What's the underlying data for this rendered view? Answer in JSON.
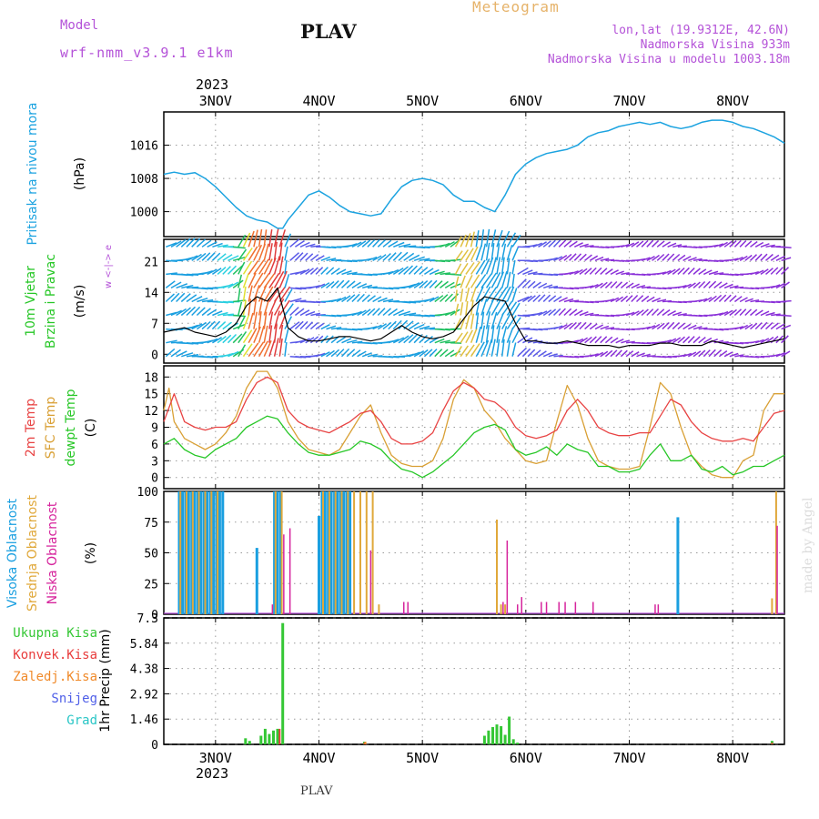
{
  "header": {
    "model_label": "Model",
    "model_value": "wrf-nmm_v3.9.1 e1km",
    "station": "PLAV",
    "title": "Meteogram",
    "lonlat": "lon,lat (19.9312E, 42.6N)",
    "elevation": "Nadmorska Visina 933m",
    "elevation_model": "Nadmorska Visina u modelu 1003.18m"
  },
  "footer": {
    "station": "PLAV",
    "watermark": "made by Angel",
    "year": "2023"
  },
  "colors": {
    "pressure": "#1ca3e0",
    "temp2m": "#e84343",
    "sfc": "#d9a035",
    "dewpt": "#27c727",
    "high_cloud": "#1a9fe0",
    "mid_cloud": "#e0a83a",
    "low_cloud": "#d6249c",
    "total_precip": "#35c735",
    "conv_precip": "#e83c3c",
    "frozen_precip": "#f08a2a",
    "snow": "#5060e8",
    "grad": "#2ac6c6",
    "purple": "#b452d8"
  },
  "chart_data": [
    {
      "type": "line",
      "panel": "pressure",
      "ylabel": "Pritisak na nivou mora",
      "unit": "(hPa)",
      "ylim": [
        994,
        1024
      ],
      "yticks": [
        1000,
        1008,
        1016
      ],
      "xticks": [
        "3NOV",
        "4NOV",
        "5NOV",
        "6NOV",
        "7NOV",
        "8NOV"
      ],
      "x_day_range": [
        2.5,
        8.5
      ],
      "grid": true,
      "series": [
        {
          "key": "pressure",
          "x": [
            2.5,
            2.6,
            2.7,
            2.8,
            2.9,
            3.0,
            3.1,
            3.2,
            3.3,
            3.4,
            3.5,
            3.6,
            3.65,
            3.7,
            3.8,
            3.9,
            4.0,
            4.1,
            4.2,
            4.3,
            4.4,
            4.5,
            4.6,
            4.7,
            4.8,
            4.9,
            5.0,
            5.1,
            5.2,
            5.3,
            5.4,
            5.5,
            5.6,
            5.7,
            5.8,
            5.9,
            6.0,
            6.1,
            6.2,
            6.3,
            6.4,
            6.5,
            6.6,
            6.7,
            6.8,
            6.9,
            7.0,
            7.1,
            7.2,
            7.3,
            7.4,
            7.5,
            7.6,
            7.7,
            7.8,
            7.9,
            8.0,
            8.1,
            8.2,
            8.3,
            8.4,
            8.5
          ],
          "values": [
            1009,
            1009.5,
            1009,
            1009.4,
            1008,
            1006,
            1003.5,
            1001,
            999,
            998,
            997.5,
            996,
            996,
            998,
            1001,
            1004,
            1005,
            1003.5,
            1001.5,
            1000,
            999.5,
            999,
            999.5,
            1003,
            1006,
            1007.5,
            1008,
            1007.5,
            1006.5,
            1004,
            1002.5,
            1002.5,
            1001,
            1000,
            1004,
            1009,
            1011.5,
            1013,
            1014,
            1014.5,
            1015,
            1016,
            1018,
            1019,
            1019.5,
            1020.5,
            1021,
            1021.5,
            1021,
            1021.5,
            1020.5,
            1020,
            1020.5,
            1021.5,
            1022,
            1022,
            1021.5,
            1020.5,
            1020,
            1019,
            1018,
            1016.5
          ]
        }
      ]
    },
    {
      "type": "line",
      "panel": "wind",
      "ylabel": [
        "10m Vjetar",
        "Brzina i Pravac"
      ],
      "unit": "(m/s)",
      "compass": "w <-|-> e",
      "ylim": [
        -2,
        26
      ],
      "yticks": [
        0,
        7,
        14,
        21
      ],
      "xticks": [
        "3NOV",
        "4NOV",
        "5NOV",
        "6NOV",
        "7NOV",
        "8NOV"
      ],
      "grid": true,
      "series": [
        {
          "key": "speed",
          "x": [
            2.5,
            2.6,
            2.7,
            2.8,
            2.9,
            3.0,
            3.1,
            3.2,
            3.3,
            3.4,
            3.5,
            3.6,
            3.7,
            3.8,
            3.9,
            4.0,
            4.1,
            4.2,
            4.3,
            4.4,
            4.5,
            4.6,
            4.7,
            4.8,
            4.9,
            5.0,
            5.1,
            5.2,
            5.3,
            5.4,
            5.5,
            5.6,
            5.7,
            5.8,
            5.9,
            6.0,
            6.1,
            6.2,
            6.3,
            6.4,
            6.5,
            6.6,
            6.7,
            6.8,
            6.9,
            7.0,
            7.1,
            7.2,
            7.3,
            7.4,
            7.5,
            7.6,
            7.7,
            7.8,
            7.9,
            8.0,
            8.1,
            8.2,
            8.3,
            8.4,
            8.5
          ],
          "values": [
            5,
            5.5,
            6,
            5,
            4.5,
            4,
            5,
            7,
            11,
            13,
            12,
            15,
            6,
            4,
            3,
            3,
            3.5,
            4,
            4,
            3.5,
            3,
            3.5,
            5,
            6.5,
            5,
            4,
            3.5,
            4,
            5,
            8,
            11,
            13,
            12.5,
            12,
            7,
            3,
            3,
            2.5,
            2.5,
            3,
            2.5,
            2,
            2,
            2,
            1.5,
            2,
            2,
            2,
            2.5,
            2.5,
            2,
            2,
            2,
            3,
            2.5,
            2,
            1.5,
            2,
            2.5,
            3,
            3.5
          ]
        }
      ]
    },
    {
      "type": "line",
      "panel": "temperature",
      "ylabel": [
        "2m Temp",
        "SFC Temp",
        "dewpt Temp"
      ],
      "unit": "(C)",
      "ylim": [
        -2,
        20
      ],
      "yticks": [
        0,
        3,
        6,
        9,
        12,
        15,
        18
      ],
      "xticks": [
        "3NOV",
        "4NOV",
        "5NOV",
        "6NOV",
        "7NOV",
        "8NOV"
      ],
      "grid": true,
      "series": [
        {
          "key": "temp2m",
          "x": [
            2.5,
            2.6,
            2.7,
            2.8,
            2.9,
            3.0,
            3.1,
            3.2,
            3.3,
            3.4,
            3.5,
            3.6,
            3.7,
            3.8,
            3.9,
            4.0,
            4.1,
            4.2,
            4.3,
            4.4,
            4.5,
            4.6,
            4.7,
            4.8,
            4.9,
            5.0,
            5.1,
            5.2,
            5.3,
            5.4,
            5.5,
            5.6,
            5.7,
            5.8,
            5.9,
            6.0,
            6.1,
            6.2,
            6.3,
            6.4,
            6.5,
            6.6,
            6.7,
            6.8,
            6.9,
            7.0,
            7.1,
            7.2,
            7.3,
            7.4,
            7.5,
            7.6,
            7.7,
            7.8,
            7.9,
            8.0,
            8.1,
            8.2,
            8.3,
            8.4,
            8.5
          ],
          "values": [
            10,
            15,
            10,
            9,
            8.5,
            9,
            9,
            10,
            14,
            17,
            18,
            17,
            12,
            10,
            9,
            8.5,
            8,
            9,
            10,
            11.5,
            12,
            10,
            7,
            6,
            6,
            6.5,
            8,
            12,
            15.5,
            17,
            16,
            14,
            13.5,
            12,
            9,
            7.5,
            7,
            7.5,
            8.5,
            12,
            14,
            12,
            9,
            8,
            7.5,
            7.5,
            8,
            8,
            11,
            14,
            13,
            10,
            8,
            7,
            6.5,
            6.5,
            7,
            6.5,
            9,
            11.5,
            12
          ]
        },
        {
          "key": "sfc",
          "x": [
            2.5,
            2.55,
            2.6,
            2.7,
            2.8,
            2.9,
            3.0,
            3.1,
            3.2,
            3.3,
            3.4,
            3.5,
            3.6,
            3.7,
            3.8,
            3.9,
            4.0,
            4.1,
            4.2,
            4.3,
            4.4,
            4.5,
            4.6,
            4.7,
            4.8,
            4.9,
            5.0,
            5.1,
            5.2,
            5.3,
            5.4,
            5.5,
            5.6,
            5.7,
            5.8,
            5.9,
            6.0,
            6.1,
            6.2,
            6.3,
            6.4,
            6.5,
            6.6,
            6.7,
            6.8,
            6.9,
            7.0,
            7.1,
            7.2,
            7.3,
            7.4,
            7.5,
            7.6,
            7.7,
            7.8,
            7.9,
            8.0,
            8.1,
            8.2,
            8.3,
            8.4,
            8.5
          ],
          "values": [
            12,
            16,
            10,
            7,
            6,
            5,
            6,
            8,
            11,
            16,
            19,
            19,
            16,
            10,
            7,
            5,
            4.5,
            4,
            5,
            8,
            11,
            13,
            8,
            4,
            2.5,
            2,
            2,
            3,
            7,
            14,
            17.5,
            16,
            12,
            10,
            7,
            5,
            3,
            2.5,
            3,
            10,
            16.5,
            13,
            7,
            3,
            2,
            1.5,
            1.5,
            2,
            9,
            17,
            15,
            9,
            4,
            2,
            0.5,
            0,
            0,
            3,
            4,
            12,
            15,
            15
          ]
        },
        {
          "key": "dewpt",
          "x": [
            2.5,
            2.6,
            2.7,
            2.8,
            2.9,
            3.0,
            3.1,
            3.2,
            3.3,
            3.4,
            3.5,
            3.6,
            3.7,
            3.8,
            3.9,
            4.0,
            4.1,
            4.2,
            4.3,
            4.4,
            4.5,
            4.6,
            4.7,
            4.8,
            4.9,
            5.0,
            5.1,
            5.2,
            5.3,
            5.4,
            5.5,
            5.6,
            5.7,
            5.8,
            5.9,
            6.0,
            6.1,
            6.2,
            6.3,
            6.4,
            6.5,
            6.6,
            6.7,
            6.8,
            6.9,
            7.0,
            7.1,
            7.2,
            7.3,
            7.4,
            7.5,
            7.6,
            7.7,
            7.8,
            7.9,
            8.0,
            8.1,
            8.2,
            8.3,
            8.4,
            8.5
          ],
          "values": [
            6,
            7,
            5,
            4,
            3.5,
            5,
            6,
            7,
            9,
            10,
            11,
            10.5,
            8,
            6,
            4.5,
            4,
            4,
            4.5,
            5,
            6.5,
            6,
            5,
            3,
            1.5,
            1,
            0,
            1,
            2.5,
            4,
            6,
            8,
            9,
            9.5,
            8.5,
            5,
            4,
            4.5,
            5.5,
            4,
            6,
            5,
            4.5,
            2,
            2,
            1,
            1,
            1.5,
            4,
            6,
            3,
            3,
            4,
            1.5,
            1,
            2,
            0.5,
            1,
            2,
            2,
            3,
            4
          ]
        }
      ]
    },
    {
      "type": "bar",
      "panel": "cloud",
      "ylabel": [
        "Visoka Oblacnost",
        "Srednja Oblacnost",
        "Niska Oblacnost"
      ],
      "unit": "(%)",
      "ylim": [
        0,
        100
      ],
      "yticks": [
        0,
        25,
        50,
        75,
        100
      ],
      "xticks": [
        "3NOV",
        "4NOV",
        "5NOV",
        "6NOV",
        "7NOV",
        "8NOV"
      ],
      "grid": true,
      "series": [
        {
          "key": "high",
          "x": [
            2.65,
            2.68,
            2.71,
            2.74,
            2.77,
            2.8,
            2.83,
            2.86,
            2.89,
            2.92,
            2.95,
            2.98,
            3.01,
            3.04,
            3.07,
            3.4,
            3.57,
            3.6,
            3.63,
            4.0,
            4.03,
            4.06,
            4.09,
            4.12,
            4.15,
            4.18,
            4.21,
            4.24,
            4.27,
            4.3,
            7.47
          ],
          "values": [
            100,
            100,
            100,
            100,
            100,
            100,
            100,
            100,
            100,
            100,
            100,
            100,
            100,
            100,
            100,
            54,
            100,
            100,
            100,
            80,
            100,
            100,
            100,
            100,
            100,
            100,
            100,
            100,
            100,
            100,
            79
          ]
        },
        {
          "key": "mid",
          "x": [
            2.66,
            2.72,
            2.78,
            2.84,
            2.9,
            2.96,
            3.02,
            3.58,
            3.64,
            4.04,
            4.1,
            4.16,
            4.22,
            4.28,
            4.34,
            4.4,
            4.46,
            4.52,
            4.58,
            5.72,
            5.76,
            5.8,
            8.38,
            8.42
          ],
          "values": [
            100,
            100,
            100,
            100,
            100,
            100,
            100,
            100,
            100,
            100,
            100,
            100,
            100,
            100,
            100,
            100,
            100,
            100,
            8,
            77,
            8,
            8,
            13,
            100
          ]
        },
        {
          "key": "low",
          "x": [
            3.55,
            3.66,
            3.72,
            4.5,
            4.82,
            4.86,
            5.78,
            5.82,
            5.92,
            5.96,
            6.15,
            6.2,
            6.32,
            6.38,
            6.48,
            6.65,
            7.25,
            7.28,
            8.43
          ],
          "values": [
            8,
            65,
            70,
            52,
            10,
            10,
            10,
            60,
            8,
            14,
            10,
            10,
            10,
            10,
            10,
            10,
            8,
            8,
            72
          ]
        }
      ]
    },
    {
      "type": "bar",
      "panel": "precip",
      "ylabel": "1hr Precip (mm)",
      "legend": [
        "Ukupna Kisa",
        "Konvek.Kisa",
        "Zaledj.Kisa",
        "Snijeg",
        "Grad"
      ],
      "ylim": [
        0,
        7.3
      ],
      "yticks": [
        0,
        1.46,
        2.92,
        4.38,
        5.84,
        7.3
      ],
      "ytick_labels": [
        "0",
        "1.46",
        "2.92",
        "4.38",
        "5.84",
        "7.3"
      ],
      "xticks": [
        "3NOV",
        "4NOV",
        "5NOV",
        "6NOV",
        "7NOV",
        "8NOV"
      ],
      "grid": true,
      "series": [
        {
          "key": "total",
          "x": [
            3.29,
            3.33,
            3.44,
            3.48,
            3.52,
            3.56,
            3.6,
            3.65,
            4.44,
            5.6,
            5.64,
            5.68,
            5.72,
            5.76,
            5.8,
            5.84,
            5.88,
            5.92,
            8.38
          ],
          "values": [
            0.35,
            0.2,
            0.5,
            0.9,
            0.6,
            0.8,
            0.9,
            7.0,
            0.15,
            0.5,
            0.8,
            1.0,
            1.15,
            1.05,
            0.55,
            1.6,
            0.3,
            0.1,
            0.2
          ]
        },
        {
          "key": "conv",
          "x": [
            3.62,
            4.44,
            8.38
          ],
          "values": [
            0.9,
            0.1,
            0.1
          ]
        },
        {
          "key": "frozen",
          "x": [
            4.45
          ],
          "values": [
            0.15
          ]
        }
      ]
    }
  ]
}
